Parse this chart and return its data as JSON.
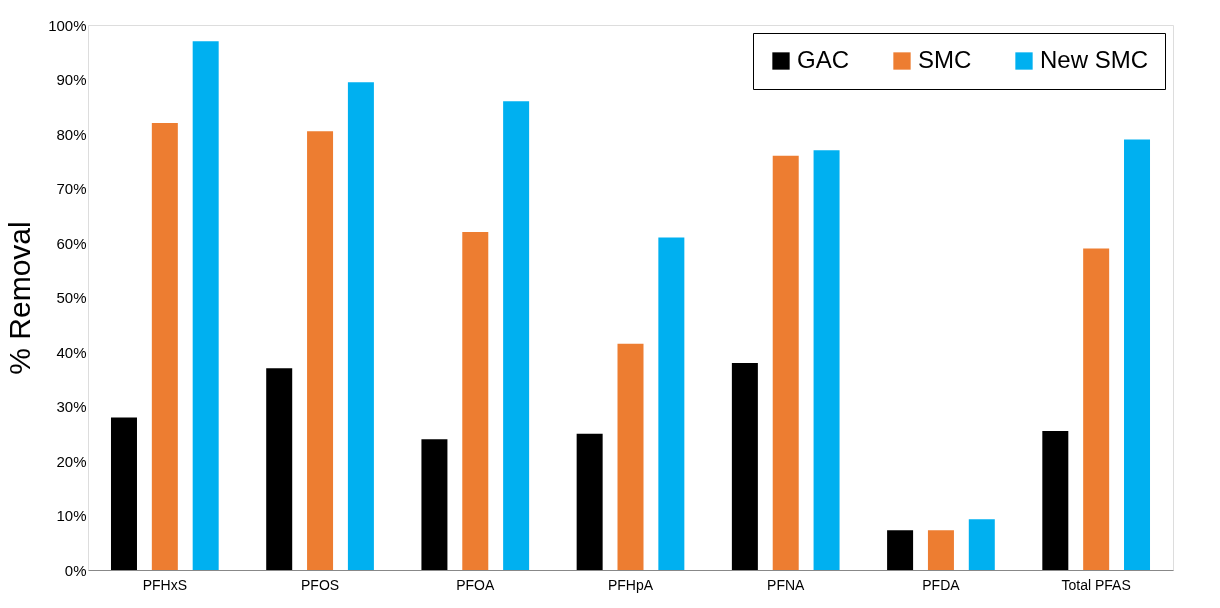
{
  "chart_data": {
    "type": "bar",
    "ylabel": "% Removal",
    "categories": [
      "PFHxS",
      "PFOS",
      "PFOA",
      "PFHpA",
      "PFNA",
      "PFDA",
      "Total PFAS"
    ],
    "series": [
      {
        "name": "GAC",
        "color": "#000000",
        "values": [
          28,
          37,
          24,
          25,
          38,
          7.3,
          25.5
        ]
      },
      {
        "name": "SMC",
        "color": "#ed7d31",
        "values": [
          82,
          80.5,
          62,
          41.5,
          76,
          7.3,
          59
        ]
      },
      {
        "name": "New SMC",
        "color": "#00b0f0",
        "values": [
          97,
          89.5,
          86,
          61,
          77,
          9.3,
          79
        ]
      }
    ],
    "ylim": [
      0,
      100
    ],
    "yticks": [
      {
        "value": 0,
        "label": "0%"
      },
      {
        "value": 10,
        "label": "10%"
      },
      {
        "value": 20,
        "label": "20%"
      },
      {
        "value": 30,
        "label": "30%"
      },
      {
        "value": 40,
        "label": "40%"
      },
      {
        "value": 50,
        "label": "50%"
      },
      {
        "value": 60,
        "label": "60%"
      },
      {
        "value": 70,
        "label": "70%"
      },
      {
        "value": 80,
        "label": "80%"
      },
      {
        "value": 90,
        "label": "90%"
      },
      {
        "value": 100,
        "label": "100%"
      }
    ],
    "grid": false,
    "legend": "top right"
  }
}
